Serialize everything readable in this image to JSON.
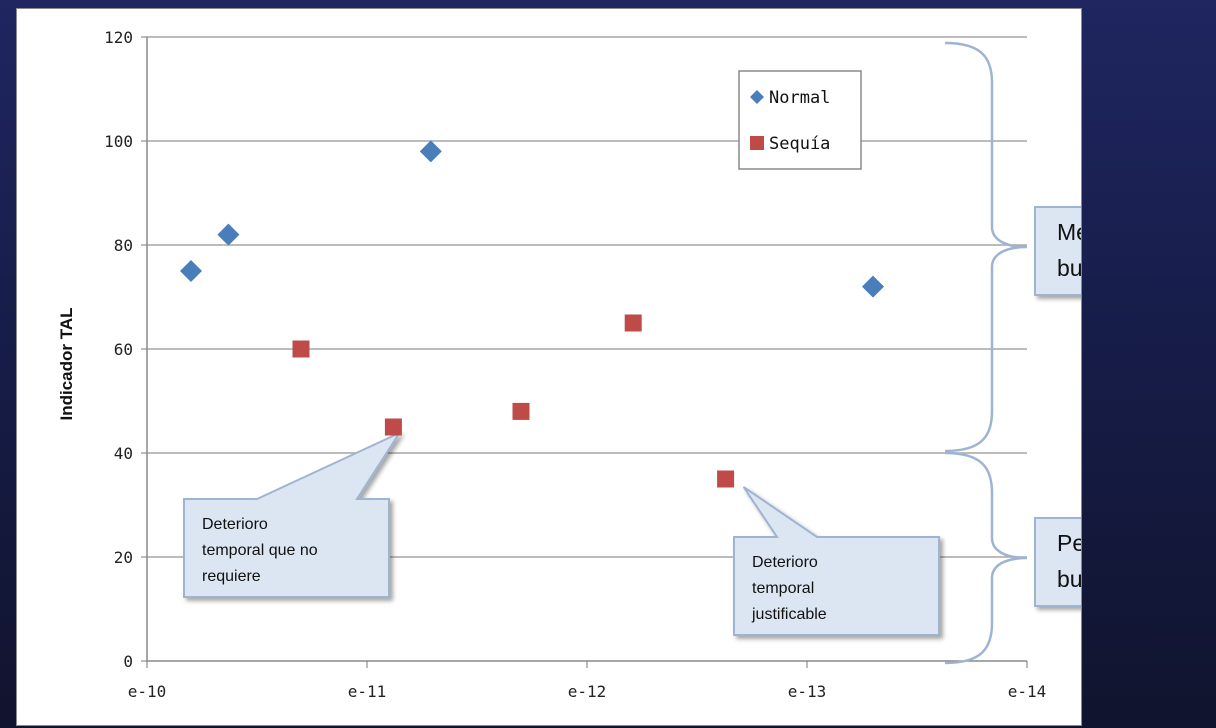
{
  "chart_data": {
    "type": "scatter",
    "ylabel": "Indicador TAL",
    "xlabel": "",
    "x_ticks": [
      "e-10",
      "e-11",
      "e-12",
      "e-13",
      "e-14"
    ],
    "xlim": [
      0,
      4
    ],
    "ylim": [
      0,
      120
    ],
    "y_ticks": [
      0,
      20,
      40,
      60,
      80,
      100,
      120
    ],
    "grid": true,
    "legend_position": "top-right",
    "series": [
      {
        "name": "Normal",
        "marker": "diamond",
        "color": "#4a7ebb",
        "points": [
          {
            "x": 0.2,
            "y": 75
          },
          {
            "x": 0.37,
            "y": 82
          },
          {
            "x": 1.29,
            "y": 98
          },
          {
            "x": 3.3,
            "y": 72
          }
        ]
      },
      {
        "name": "Sequía",
        "marker": "square",
        "color": "#be4b48",
        "points": [
          {
            "x": 0.7,
            "y": 60
          },
          {
            "x": 1.12,
            "y": 45
          },
          {
            "x": 1.7,
            "y": 48
          },
          {
            "x": 2.21,
            "y": 65
          },
          {
            "x": 2.63,
            "y": 35
          }
        ]
      }
    ],
    "annotations": [
      {
        "text_lines": [
          "Deterioro",
          "temporal    que    no",
          "requiere"
        ],
        "target": {
          "x": 1.12,
          "y": 45
        }
      },
      {
        "text_lines": [
          "Deterioro",
          "temporal",
          "justificable"
        ],
        "target": {
          "x": 2.63,
          "y": 35
        }
      }
    ],
    "brackets": [
      {
        "label_lines": [
          "Mejor    que",
          "bueno"
        ],
        "range": [
          40,
          120
        ]
      },
      {
        "label_lines": [
          "Peor     que",
          "bueno"
        ],
        "range": [
          0,
          40
        ]
      }
    ],
    "colors": {
      "grid": "#a6a6a6",
      "callout_fill": "#dce6f2",
      "callout_border": "#9fb4d0",
      "bracket": "#9fb4d0"
    }
  }
}
